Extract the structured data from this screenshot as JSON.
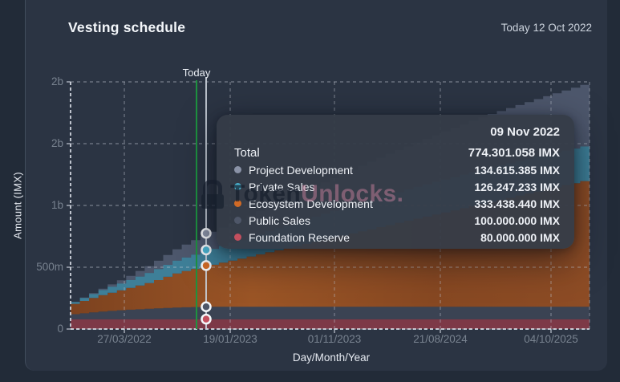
{
  "header": {
    "title": "Vesting schedule",
    "today_label": "Today 12 Oct 2022"
  },
  "watermark": {
    "text_dark": "Token",
    "text_pink": "Unlocks."
  },
  "tooltip": {
    "date": "09 Nov 2022",
    "total_label": "Total",
    "total_value": "774.301.058 IMX",
    "rows": [
      {
        "label": "Project Development",
        "value": "134.615.385 IMX",
        "color": "#8b93a7"
      },
      {
        "label": "Private Sales",
        "value": "126.247.233 IMX",
        "color": "#49b2cf"
      },
      {
        "label": "Ecosystem Development",
        "value": "333.438.440 IMX",
        "color": "#d06a26"
      },
      {
        "label": "Public Sales",
        "value": "100.000.000 IMX",
        "color": "#4e5668"
      },
      {
        "label": "Foundation Reserve",
        "value": "80.000.000 IMX",
        "color": "#c44f5e"
      }
    ]
  },
  "colors": {
    "page_bg": "#222b38",
    "card_bg": "#2b3443",
    "grid": "#c3c9d4",
    "axis": "#d8dde5",
    "tick_text": "#78828f",
    "today_line": "#1d9440",
    "crosshair": "#c9cfd9",
    "marker_ring": "#f4f6f9"
  },
  "chart_data": {
    "type": "area",
    "stacked": true,
    "title": "Vesting schedule",
    "xlabel": "Day/Month/Year",
    "ylabel": "Amount (IMX)",
    "unit": "IMX",
    "values_in": "millions of IMX",
    "ylim": [
      0,
      2000
    ],
    "grid": true,
    "y_ticks": [
      {
        "value": 0,
        "label": "0"
      },
      {
        "value": 500,
        "label": "500m"
      },
      {
        "value": 1000,
        "label": "1b"
      },
      {
        "value": 1500,
        "label": "2b"
      },
      {
        "value": 2000,
        "label": "2b"
      }
    ],
    "x_ticks": [
      {
        "t": 0.1036,
        "label": "27/03/2022"
      },
      {
        "t": 0.3076,
        "label": "19/01/2023"
      },
      {
        "t": 0.5085,
        "label": "01/11/2023"
      },
      {
        "t": 0.7125,
        "label": "21/08/2024"
      },
      {
        "t": 0.9258,
        "label": "04/10/2025"
      }
    ],
    "today_marker": {
      "label": "Today",
      "t": 0.2427,
      "date": "12 Oct 2022"
    },
    "hover_marker": {
      "t": 0.2612,
      "date": "09 Nov 2022",
      "cum_values": [
        80,
        180,
        513.438,
        639.685,
        774.301
      ]
    },
    "t_samples": [
      0,
      0.05,
      0.1,
      0.15,
      0.2,
      0.26,
      0.3,
      0.4,
      0.5,
      0.6,
      0.7,
      0.8,
      0.9,
      1
    ],
    "series": [
      {
        "name": "Foundation Reserve",
        "area_color": "#7d3947",
        "dot_color": "#c44f5e",
        "opacity": 1,
        "values": [
          80,
          80,
          80,
          80,
          80,
          80,
          80,
          80,
          80,
          80,
          80,
          80,
          80,
          80
        ]
      },
      {
        "name": "Public Sales",
        "area_color": "#3b4353",
        "dot_color": "#4e5668",
        "opacity": 1,
        "values": [
          40,
          60,
          75,
          85,
          95,
          100,
          100,
          100,
          100,
          100,
          100,
          100,
          100,
          100
        ]
      },
      {
        "name": "Ecosystem Development",
        "area_color": "#8d4c25",
        "dot_color": "#d06a26",
        "opacity": 1,
        "gradient": [
          [
            0,
            "#7c421f"
          ],
          [
            0.35,
            "#9b5526"
          ],
          [
            0.7,
            "#874822"
          ],
          [
            1,
            "#8d4c25"
          ]
        ],
        "values": [
          84,
          130,
          170,
          215,
          280,
          333,
          370,
          465,
          560,
          655,
          750,
          845,
          940,
          1034
        ]
      },
      {
        "name": "Private Sales",
        "area_color": "#3e7f98",
        "dot_color": "#49b2cf",
        "opacity": 1,
        "values": [
          15,
          40,
          60,
          85,
          105,
          126,
          140,
          180,
          215,
          245,
          265,
          280,
          280,
          280
        ]
      },
      {
        "name": "Project Development",
        "area_color": "#6e7892",
        "dot_color": "#8b93a7",
        "opacity": 0.52,
        "values": [
          0,
          10,
          30,
          60,
          95,
          135,
          155,
          210,
          265,
          325,
          380,
          430,
          470,
          505
        ]
      }
    ]
  }
}
